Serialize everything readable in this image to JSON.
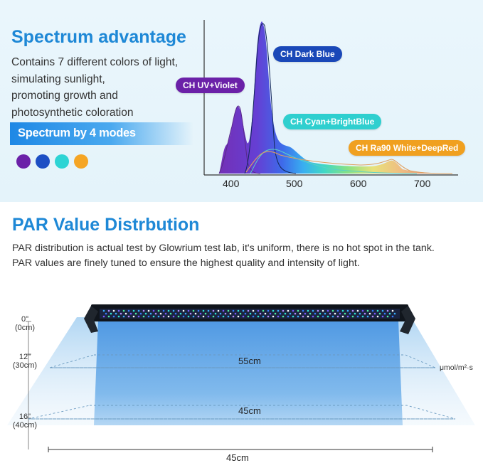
{
  "spectrum_section": {
    "title": "Spectrum advantage",
    "description_lines": [
      "Contains 7 different colors of light,",
      "simulating sunlight,",
      "promoting growth and",
      "photosynthetic coloration"
    ],
    "modes_label": "Spectrum by 4 modes",
    "mode_colors": [
      "#6b21a8",
      "#1d4fc4",
      "#2dd4d4",
      "#f5a524"
    ],
    "channels": [
      {
        "label": "CH Dark Blue",
        "color": "#1a48b8"
      },
      {
        "label": "CH UV+Violet",
        "color": "#6b21a8"
      },
      {
        "label": "CH Cyan+BrightBlue",
        "color": "#2fcfcf"
      },
      {
        "label": "CH Ra90 White+DeepRed",
        "color": "#f0a020"
      }
    ],
    "axis_ticks": [
      "400",
      "500",
      "600",
      "700"
    ]
  },
  "par_section": {
    "title": "PAR Value Distrbution",
    "line1": "PAR distribution is actual test by Glowrium test lab, it's uniform, there is no hot spot in the tank.",
    "line2": "PAR values are finely tuned to ensure the highest quality and intensity of light.",
    "depths": [
      {
        "inch": "0\"",
        "cm": "(0cm)"
      },
      {
        "inch": "12\"",
        "cm": "(30cm)"
      },
      {
        "inch": "16\"",
        "cm": "(40cm)"
      }
    ],
    "width_30cm": "55cm",
    "width_40cm": "45cm",
    "bottom_width": "45cm",
    "unit": "μmol/m²·s"
  }
}
